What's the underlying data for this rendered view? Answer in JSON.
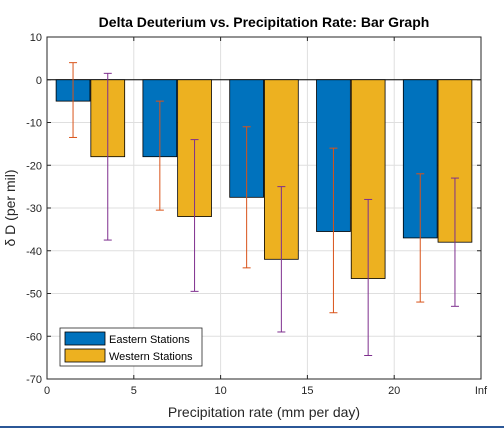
{
  "chart_data": {
    "type": "bar",
    "title": "Delta Deuterium vs. Precipitation Rate: Bar Graph",
    "xlabel": "Precipitation rate (mm per day)",
    "ylabel": "δ D (per mil)",
    "x_ticks": [
      "0",
      "5",
      "10",
      "15",
      "20",
      "Inf"
    ],
    "x_tick_values": [
      0,
      5,
      10,
      15,
      20,
      25
    ],
    "y_ticks": [
      10,
      0,
      -10,
      -20,
      -30,
      -40,
      -50,
      -60,
      -70
    ],
    "xlim": [
      0,
      25
    ],
    "ylim": [
      -70,
      10
    ],
    "grid": true,
    "legend_position": "bottom-left",
    "group_centers": [
      2.5,
      7.5,
      12.5,
      17.5,
      22.5
    ],
    "series": [
      {
        "name": "Eastern Stations",
        "color": "#0072BD",
        "errorbar_color": "#D95319",
        "values": [
          -5,
          -18,
          -27.5,
          -35.5,
          -37
        ],
        "error_low": [
          -13.5,
          -30.5,
          -44,
          -54.5,
          -52
        ],
        "error_high": [
          4,
          -5,
          -11,
          -16,
          -22
        ]
      },
      {
        "name": "Western Stations",
        "color": "#EDB120",
        "errorbar_color": "#7E2F8E",
        "values": [
          -18,
          -32,
          -42,
          -46.5,
          -38
        ],
        "error_low": [
          -37.5,
          -49.5,
          -59,
          -64.5,
          -53
        ],
        "error_high": [
          1.5,
          -14,
          -25,
          -28,
          -23
        ]
      }
    ]
  }
}
